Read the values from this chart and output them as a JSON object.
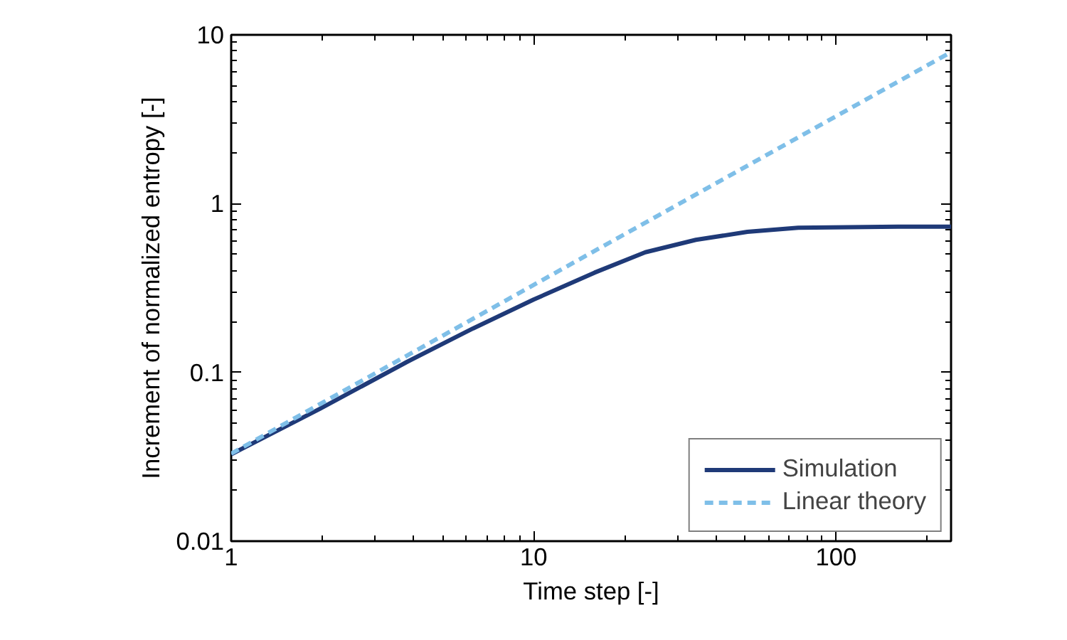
{
  "chart_data": {
    "type": "line",
    "xlabel": "Time step [-]",
    "ylabel": "Increment of normalized entropy [-]",
    "log": "xy",
    "xlim": [
      1,
      240
    ],
    "ylim": [
      0.01,
      10
    ],
    "xticks": [
      1,
      10,
      100
    ],
    "yticks": [
      0.01,
      0.1,
      1,
      10
    ],
    "grid": false,
    "legend": "bottom right",
    "marker": "none",
    "series": [
      {
        "name": "Simulation",
        "color": "#1f3a78",
        "line_style": "solid",
        "x": [
          1,
          1.97,
          3.8,
          6.3,
          10,
          15.9,
          23.4,
          34.4,
          50.9,
          75,
          110,
          160,
          240
        ],
        "values": [
          0.0327,
          0.061,
          0.115,
          0.182,
          0.27,
          0.39,
          0.515,
          0.61,
          0.68,
          0.72,
          0.725,
          0.73,
          0.73
        ]
      },
      {
        "name": "Linear theory",
        "color": "#7fbfe8",
        "line_style": "dashed",
        "x": [
          1,
          240
        ],
        "values": [
          0.033,
          7.9
        ]
      }
    ]
  }
}
